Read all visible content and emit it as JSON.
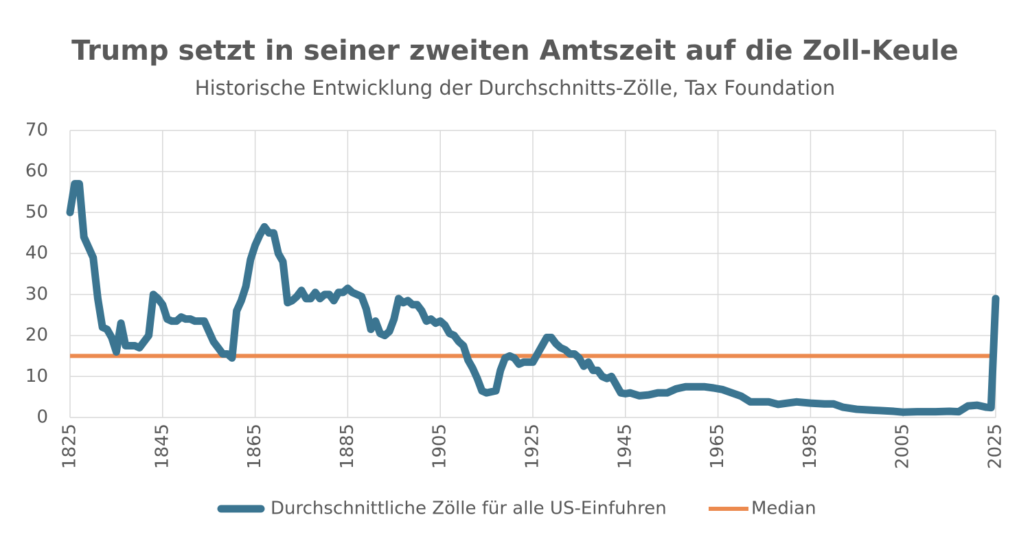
{
  "chart_data": {
    "type": "line",
    "title": "Trump setzt in seiner zweiten Amtszeit auf die Zoll-Keule",
    "subtitle": "Historische Entwicklung der Durchschnitts-Zölle, Tax Foundation",
    "x": [
      1825,
      1826,
      1827,
      1828,
      1830,
      1831,
      1832,
      1833,
      1834,
      1835,
      1836,
      1837,
      1839,
      1840,
      1842,
      1843,
      1844,
      1845,
      1846,
      1847,
      1848,
      1849,
      1850,
      1851,
      1852,
      1854,
      1855,
      1856,
      1857,
      1858,
      1859,
      1860,
      1861,
      1862,
      1863,
      1864,
      1865,
      1866,
      1867,
      1868,
      1869,
      1870,
      1871,
      1872,
      1873,
      1874,
      1875,
      1876,
      1877,
      1878,
      1879,
      1880,
      1881,
      1882,
      1883,
      1884,
      1885,
      1886,
      1887,
      1888,
      1889,
      1890,
      1891,
      1892,
      1893,
      1894,
      1895,
      1896,
      1897,
      1898,
      1899,
      1900,
      1901,
      1902,
      1903,
      1904,
      1905,
      1906,
      1907,
      1908,
      1909,
      1910,
      1911,
      1912,
      1913,
      1914,
      1915,
      1917,
      1918,
      1919,
      1920,
      1921,
      1922,
      1923,
      1924,
      1925,
      1926,
      1927,
      1928,
      1929,
      1930,
      1931,
      1932,
      1933,
      1934,
      1935,
      1936,
      1937,
      1938,
      1939,
      1940,
      1941,
      1942,
      1943,
      1944,
      1945,
      1946,
      1948,
      1950,
      1952,
      1954,
      1956,
      1958,
      1960,
      1962,
      1964,
      1966,
      1968,
      1970,
      1972,
      1974,
      1976,
      1978,
      1980,
      1982,
      1985,
      1988,
      1990,
      1992,
      1995,
      1998,
      2000,
      2003,
      2005,
      2008,
      2012,
      2015,
      2017,
      2019,
      2021,
      2023,
      2024,
      2025
    ],
    "series": [
      {
        "name": "Durchschnittliche Zölle für alle US-Einfuhren",
        "color": "#3b7591",
        "values": [
          50,
          57,
          57,
          44,
          39,
          29,
          22,
          21.5,
          19.5,
          16,
          23,
          17.5,
          17.5,
          17,
          20,
          30,
          29,
          27.5,
          24,
          23.5,
          23.5,
          24.5,
          24,
          24,
          23.5,
          23.5,
          21,
          18.5,
          17,
          15.5,
          15.5,
          14.5,
          26,
          28.5,
          32,
          38.5,
          42,
          44.5,
          46.5,
          45,
          45,
          40,
          38,
          28,
          28.5,
          29.5,
          31,
          29,
          29,
          30.5,
          29,
          30,
          30,
          28.5,
          30.5,
          30.5,
          31.5,
          30.5,
          30,
          29.5,
          26.5,
          21.5,
          23.5,
          20.5,
          20,
          21,
          24,
          29,
          28,
          28.5,
          27.5,
          27.5,
          26,
          23.5,
          24,
          23,
          23.5,
          22.5,
          20.5,
          20,
          18.5,
          17.5,
          14,
          12,
          9.5,
          6.5,
          6,
          6.5,
          11.5,
          14.5,
          15,
          14.5,
          13,
          13.5,
          13.5,
          13.5,
          15.5,
          17.5,
          19.5,
          19.5,
          18,
          17,
          16.5,
          15.5,
          15.5,
          14.5,
          12.5,
          13.5,
          11.5,
          11.5,
          10,
          9.5,
          10,
          8,
          6,
          5.8,
          6,
          5.3,
          5.5,
          6,
          6,
          7,
          7.5,
          7.5,
          7.5,
          7.2,
          6.8,
          6,
          5.2,
          3.8,
          3.8,
          3.8,
          3.2,
          3.5,
          3.8,
          3.5,
          3.3,
          3.3,
          2.5,
          2,
          1.8,
          1.7,
          1.5,
          1.3,
          1.4,
          1.4,
          1.5,
          1.4,
          2.8,
          3,
          2.5,
          2.4,
          29
        ]
      }
    ],
    "median": {
      "name": "Median",
      "color": "#ec8a4f",
      "value": 15
    },
    "xlim": [
      1825,
      2025
    ],
    "xticks": [
      1825,
      1845,
      1865,
      1885,
      1905,
      1925,
      1945,
      1965,
      1985,
      2005,
      2025
    ],
    "ylim": [
      0,
      70
    ],
    "yticks": [
      0,
      10,
      20,
      30,
      40,
      50,
      60,
      70
    ],
    "grid": true,
    "legend": "bottom"
  }
}
